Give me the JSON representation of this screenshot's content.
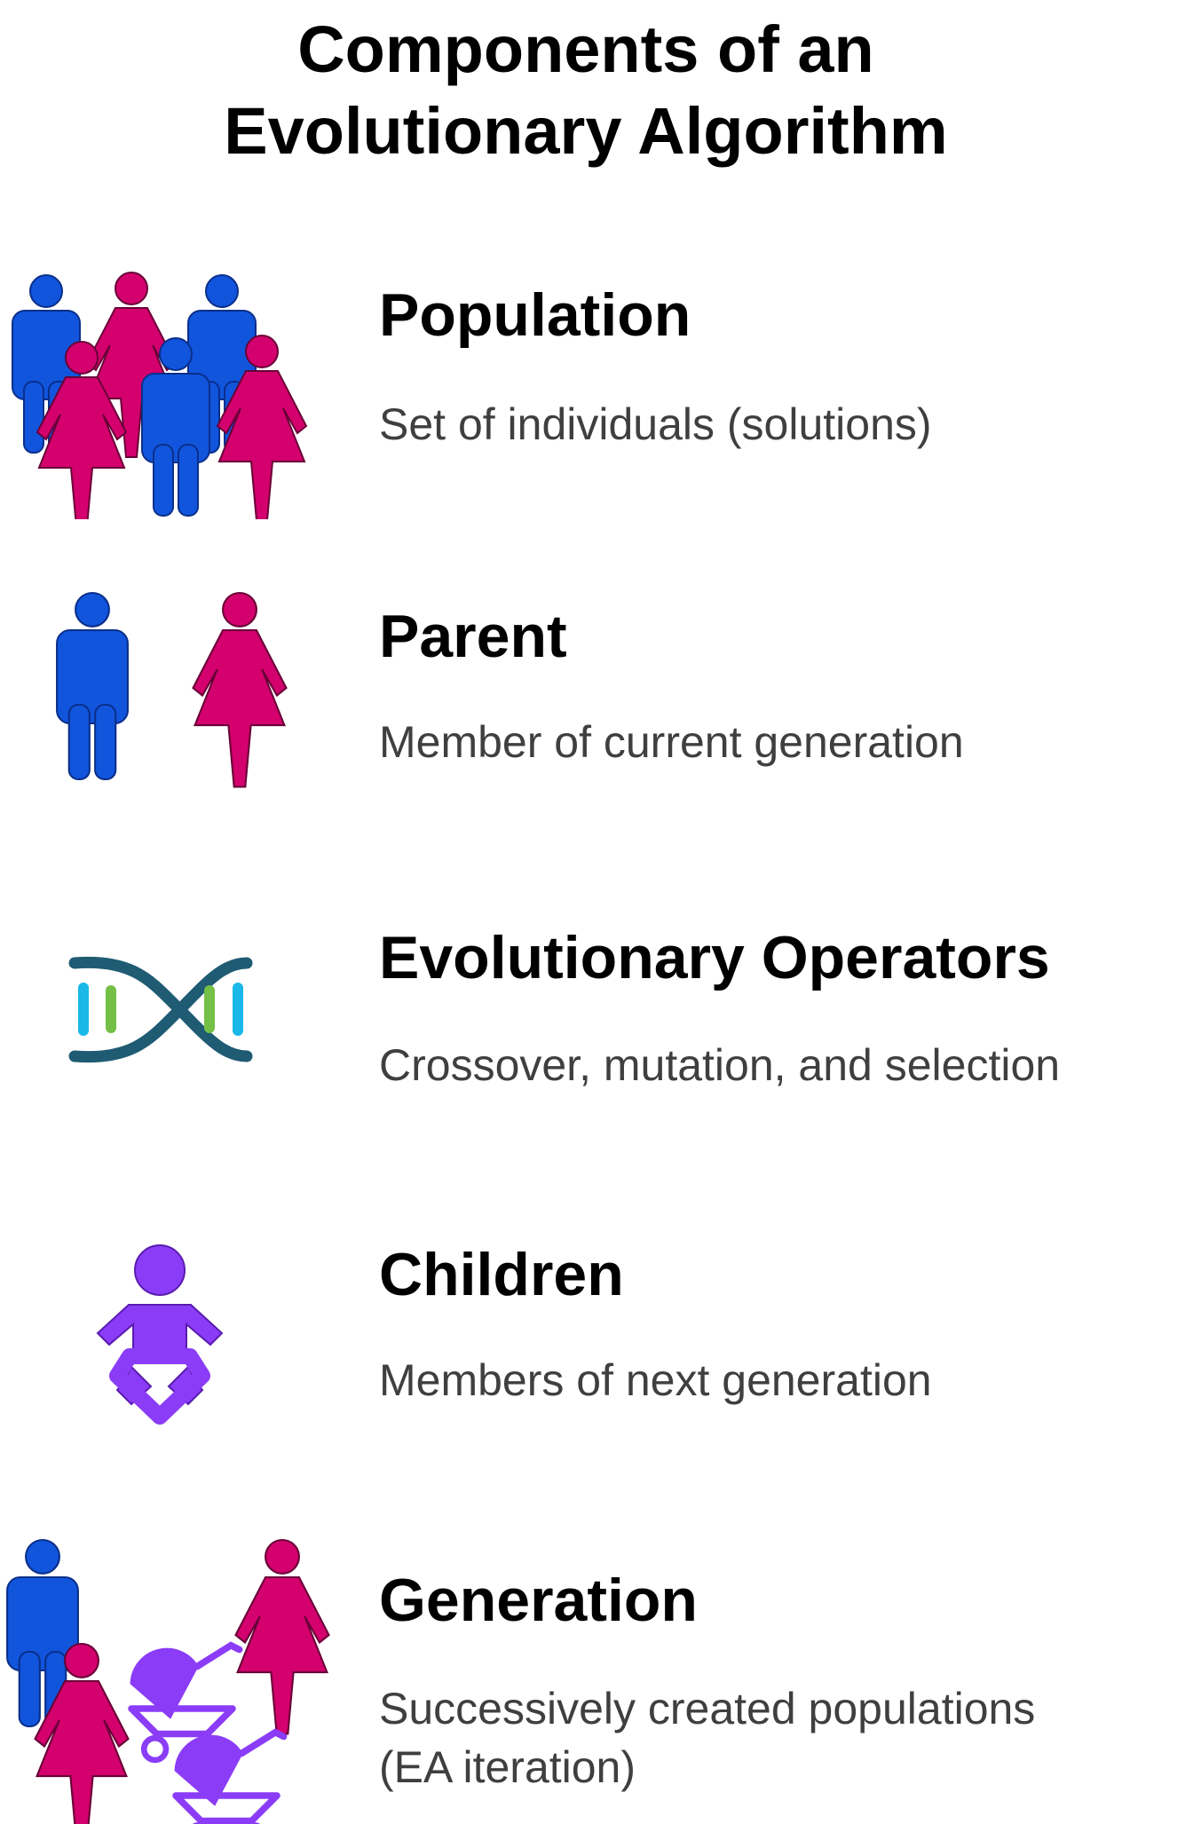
{
  "title": {
    "line1": "Components of an",
    "line2": "Evolutionary Algorithm"
  },
  "components": [
    {
      "name": "Population",
      "description": "Set of individuals (solutions)",
      "icon": "population-icon"
    },
    {
      "name": "Parent",
      "description": "Member of current generation",
      "icon": "parents-icon"
    },
    {
      "name": "Evolutionary Operators",
      "description": "Crossover, mutation, and selection",
      "icon": "dna-icon"
    },
    {
      "name": "Children",
      "description": "Members of next generation",
      "icon": "baby-icon"
    },
    {
      "name": "Generation",
      "description_line1": "Successively created populations",
      "description_line2": "(EA iteration)",
      "icon": "family-strollers-icon"
    }
  ],
  "colors": {
    "male": "#1155dd",
    "female": "#d4006e",
    "child": "#8b3cf7",
    "dna_strand": "#1f5b73",
    "dna_cyan": "#1ab8e8",
    "dna_green": "#74c047",
    "description_text": "#3f3f3f"
  }
}
